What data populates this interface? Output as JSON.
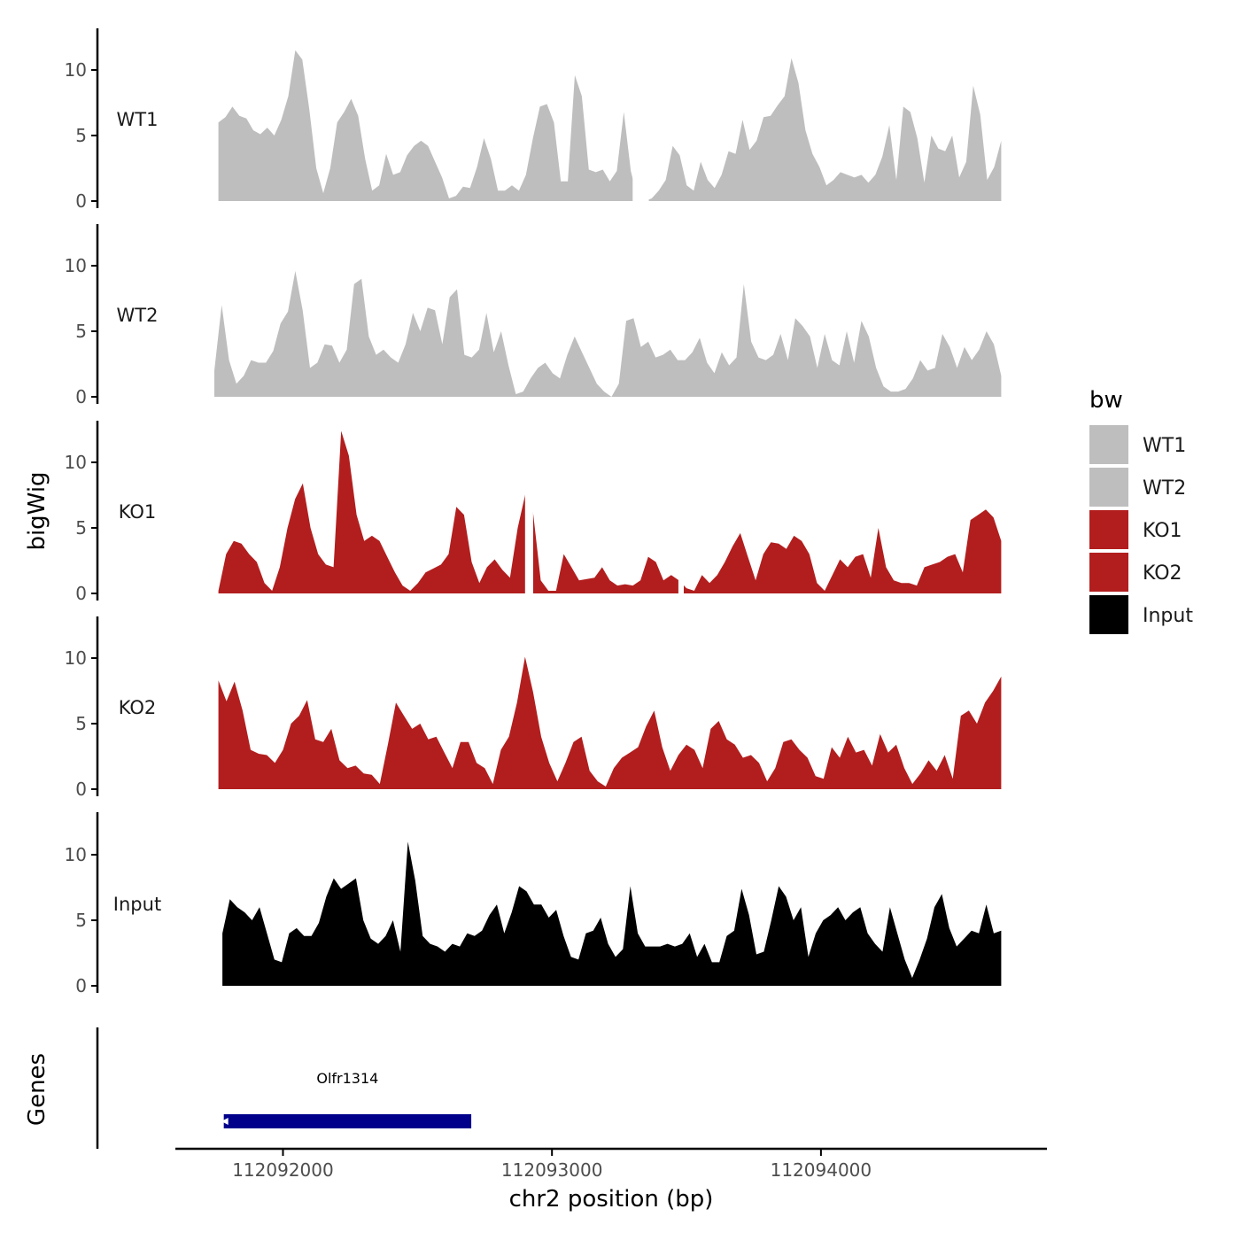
{
  "colors": {
    "wt": "#bebebe",
    "ko": "#b21e1e",
    "input": "#000000",
    "gene": "#00008b",
    "axis": "#000000"
  },
  "chart_data": {
    "type": "area",
    "ylabel": "bigWig",
    "xlabel": "chr2 position (bp)",
    "xlim": [
      112091600,
      112094840
    ],
    "ylim": [
      0,
      13
    ],
    "x_ticks": [
      112092000,
      112093000,
      112094000
    ],
    "x_tick_labels": [
      "112092000",
      "112093000",
      "112094000"
    ],
    "y_ticks": [
      0,
      5,
      10
    ],
    "y_tick_labels": [
      "0",
      "5",
      "10"
    ],
    "legend": {
      "title": "bw",
      "position": "right",
      "entries": [
        "WT1",
        "WT2",
        "KO1",
        "KO2",
        "Input"
      ]
    },
    "series": [
      {
        "name": "WT1",
        "color_key": "wt",
        "x_start": 112091760,
        "x_end": 112094670,
        "values": [
          6.0,
          6.4,
          7.2,
          6.5,
          6.3,
          5.4,
          5.1,
          5.6,
          5.0,
          6.2,
          8.0,
          11.5,
          10.8,
          7.0,
          2.5,
          0.6,
          2.5,
          6.0,
          6.8,
          7.8,
          6.5,
          3.2,
          0.8,
          1.2,
          3.6,
          2.0,
          2.2,
          3.5,
          4.2,
          4.6,
          4.2,
          3.0,
          1.8,
          0.2,
          0.4,
          1.1,
          1.0,
          2.6,
          4.8,
          3.2,
          0.8,
          0.8,
          1.2,
          0.8,
          2.0,
          4.8,
          7.2,
          7.4,
          6.0,
          1.5,
          1.5,
          9.6,
          8.0,
          2.4,
          2.2,
          2.4,
          1.5,
          2.3,
          6.8,
          2.3,
          0.2,
          0.0,
          0.2,
          0.8,
          1.6,
          4.2,
          3.5,
          1.2,
          0.8,
          3.0,
          1.6,
          1.0,
          2.0,
          3.8,
          3.6,
          6.2,
          3.9,
          4.6,
          6.4,
          6.5,
          7.3,
          8.0,
          10.9,
          9.0,
          5.4,
          3.6,
          2.6,
          1.2,
          1.6,
          2.2,
          2.0,
          1.8,
          2.0,
          1.4,
          2.0,
          3.4,
          5.8,
          1.6,
          7.2,
          6.8,
          4.8,
          1.4,
          5.0,
          4.0,
          3.8,
          5.0,
          1.8,
          3.0,
          8.8,
          6.6,
          1.6,
          2.6,
          4.6
        ],
        "gaps": [
          [
            112093300,
            112093360
          ]
        ]
      },
      {
        "name": "WT2",
        "color_key": "wt",
        "x_start": 112091745,
        "x_end": 112094670,
        "values": [
          2.0,
          7.0,
          2.8,
          1.0,
          1.6,
          2.8,
          2.6,
          2.6,
          3.5,
          5.6,
          6.5,
          9.6,
          6.6,
          2.2,
          2.6,
          4.0,
          3.9,
          2.6,
          3.6,
          8.6,
          9.0,
          4.6,
          3.2,
          3.6,
          3.0,
          2.6,
          4.0,
          6.4,
          5.0,
          6.8,
          6.6,
          4.0,
          7.6,
          8.2,
          3.2,
          3.0,
          3.6,
          6.4,
          3.4,
          5.0,
          2.4,
          0.2,
          0.4,
          1.4,
          2.2,
          2.6,
          1.8,
          1.4,
          3.2,
          4.6,
          3.4,
          2.2,
          1.0,
          0.4,
          0.0,
          1.0,
          5.8,
          6.0,
          3.8,
          4.2,
          3.0,
          3.2,
          3.6,
          2.8,
          2.8,
          3.4,
          4.5,
          2.6,
          1.8,
          3.4,
          2.4,
          3.0,
          8.6,
          4.2,
          3.0,
          2.8,
          3.2,
          4.8,
          2.8,
          6.0,
          5.4,
          4.6,
          2.2,
          4.8,
          2.8,
          2.4,
          5.0,
          2.6,
          5.8,
          4.6,
          2.2,
          0.8,
          0.4,
          0.4,
          0.6,
          1.4,
          2.8,
          2.0,
          2.2,
          4.8,
          3.8,
          2.2,
          3.8,
          2.8,
          3.6,
          5.0,
          4.0,
          1.6
        ],
        "gaps": []
      },
      {
        "name": "KO1",
        "color_key": "ko",
        "x_start": 112091760,
        "x_end": 112094670,
        "values": [
          0.2,
          3.0,
          4.0,
          3.8,
          3.0,
          2.4,
          0.8,
          0.2,
          2.0,
          5.0,
          7.2,
          8.4,
          5.0,
          3.0,
          2.2,
          2.0,
          12.4,
          10.5,
          6.0,
          4.0,
          4.4,
          4.0,
          2.8,
          1.6,
          0.6,
          0.2,
          0.8,
          1.6,
          1.9,
          2.2,
          3.0,
          6.6,
          6.0,
          2.4,
          0.8,
          2.0,
          2.6,
          1.8,
          1.2,
          5.0,
          7.6,
          6.2,
          1.0,
          0.2,
          0.2,
          3.0,
          2.0,
          1.0,
          1.1,
          1.2,
          2.0,
          1.0,
          0.6,
          0.7,
          0.6,
          1.0,
          2.8,
          2.4,
          1.0,
          1.4,
          1.0,
          0.4,
          0.2,
          1.4,
          0.8,
          1.4,
          2.4,
          3.6,
          4.6,
          2.8,
          1.0,
          3.0,
          3.9,
          3.8,
          3.4,
          4.4,
          4.0,
          3.0,
          0.8,
          0.2,
          1.4,
          2.6,
          2.0,
          2.8,
          3.0,
          1.2,
          5.0,
          2.0,
          1.0,
          0.8,
          0.8,
          0.6,
          2.0,
          2.2,
          2.4,
          2.8,
          3.0,
          1.6,
          5.6,
          6.0,
          6.4,
          5.8,
          4.0
        ],
        "gaps": [
          [
            112092900,
            112092930
          ],
          [
            112093470,
            112093490
          ]
        ]
      },
      {
        "name": "KO2",
        "color_key": "ko",
        "x_start": 112091760,
        "x_end": 112094670,
        "values": [
          8.3,
          6.7,
          8.2,
          6.0,
          3.0,
          2.7,
          2.6,
          2.0,
          3.0,
          5.0,
          5.6,
          6.8,
          3.8,
          3.6,
          4.6,
          2.2,
          1.6,
          1.8,
          1.2,
          1.1,
          0.4,
          3.4,
          6.6,
          5.6,
          4.6,
          5.0,
          3.8,
          4.0,
          2.8,
          1.6,
          3.6,
          3.6,
          2.0,
          1.6,
          0.4,
          3.0,
          4.0,
          6.6,
          10.1,
          7.4,
          4.0,
          2.0,
          0.6,
          2.0,
          3.6,
          4.0,
          1.4,
          0.6,
          0.2,
          1.6,
          2.4,
          2.8,
          3.2,
          4.8,
          6.0,
          3.2,
          1.4,
          2.6,
          3.4,
          3.0,
          1.6,
          4.6,
          5.2,
          3.8,
          3.4,
          2.4,
          2.6,
          2.0,
          0.6,
          1.6,
          3.6,
          3.8,
          3.0,
          2.4,
          1.0,
          0.8,
          3.2,
          2.4,
          4.0,
          2.8,
          3.0,
          1.8,
          4.2,
          2.8,
          3.4,
          1.6,
          0.4,
          1.2,
          2.2,
          1.4,
          2.6,
          0.8,
          5.6,
          6.0,
          5.0,
          6.6,
          7.5,
          8.6
        ],
        "gaps": []
      },
      {
        "name": "Input",
        "color_key": "input",
        "x_start": 112091775,
        "x_end": 112094670,
        "values": [
          4.0,
          6.6,
          6.0,
          5.6,
          5.0,
          6.0,
          4.0,
          2.0,
          1.8,
          4.0,
          4.4,
          3.8,
          3.8,
          4.8,
          6.8,
          8.2,
          7.4,
          7.8,
          8.2,
          5.0,
          3.6,
          3.2,
          3.8,
          5.0,
          2.6,
          11.0,
          8.0,
          3.8,
          3.2,
          3.0,
          2.6,
          3.2,
          3.0,
          4.0,
          3.8,
          4.2,
          5.4,
          6.2,
          4.0,
          5.6,
          7.6,
          7.2,
          6.2,
          6.2,
          5.2,
          5.8,
          3.8,
          2.2,
          2.0,
          4.0,
          4.2,
          5.2,
          3.2,
          2.2,
          2.8,
          7.6,
          4.0,
          3.0,
          3.0,
          3.0,
          3.2,
          3.0,
          3.2,
          4.0,
          2.2,
          3.2,
          1.8,
          1.8,
          3.8,
          4.2,
          7.4,
          5.4,
          2.4,
          2.6,
          5.0,
          7.6,
          6.8,
          5.0,
          6.0,
          2.2,
          4.0,
          5.0,
          5.4,
          6.0,
          5.0,
          5.6,
          6.0,
          4.0,
          3.2,
          2.6,
          6.0,
          4.0,
          2.0,
          0.6,
          2.0,
          3.6,
          6.0,
          7.0,
          4.4,
          3.0,
          3.6,
          4.2,
          4.0,
          6.2,
          4.0,
          4.2
        ],
        "gaps": []
      }
    ],
    "genes": [
      {
        "name": "Olfr1314",
        "start": 112091780,
        "end": 112092700
      }
    ],
    "genes_panel_label": "Genes"
  }
}
